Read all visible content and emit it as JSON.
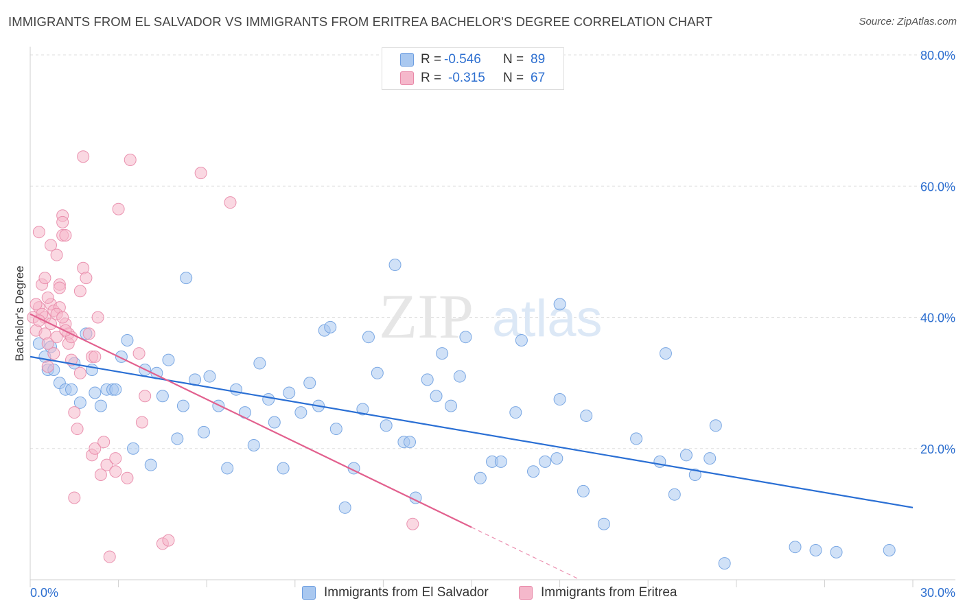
{
  "title": "IMMIGRANTS FROM EL SALVADOR VS IMMIGRANTS FROM ERITREA BACHELOR'S DEGREE CORRELATION CHART",
  "source": "Source: ZipAtlas.com",
  "watermark": {
    "part1": "ZIP",
    "part2": "atlas"
  },
  "colors": {
    "blue_fill": "#a9c8f0",
    "blue_edge": "#6d9ee0",
    "blue_line": "#2a6fd4",
    "pink_fill": "#f5b8cb",
    "pink_edge": "#e888a8",
    "pink_line": "#e2608e",
    "axis_label": "#2d6fd0",
    "grid": "#dedede"
  },
  "stats": [
    {
      "r_label": "R =",
      "r_value": "-0.546",
      "n_label": "N =",
      "n_value": "89",
      "color": "#a9c8f0"
    },
    {
      "r_label": "R =",
      "r_value": "-0.315",
      "n_label": "N =",
      "n_value": "67",
      "color": "#f5b8cb"
    }
  ],
  "legend": [
    {
      "label": "Immigrants from El Salvador",
      "color": "#a9c8f0"
    },
    {
      "label": "Immigrants from Eritrea",
      "color": "#f5b8cb"
    }
  ],
  "chart_data": {
    "type": "scatter",
    "title": "IMMIGRANTS FROM EL SALVADOR VS IMMIGRANTS FROM ERITREA BACHELOR'S DEGREE CORRELATION CHART",
    "xlabel": "",
    "ylabel": "Bachelor's Degree",
    "xlim": [
      0,
      30
    ],
    "ylim": [
      0,
      80
    ],
    "x_tick_labels": [
      "0.0%",
      "30.0%"
    ],
    "y_ticks": [
      20,
      40,
      60,
      80
    ],
    "y_tick_labels": [
      "20.0%",
      "40.0%",
      "60.0%",
      "80.0%"
    ],
    "grid": true,
    "legend_position": "bottom-center",
    "series": [
      {
        "name": "Immigrants from El Salvador",
        "color": "#a9c8f0",
        "trend": {
          "x": [
            0,
            30
          ],
          "y": [
            34.0,
            11.0
          ]
        },
        "points": [
          [
            0.3,
            36
          ],
          [
            0.5,
            34
          ],
          [
            0.6,
            32
          ],
          [
            0.7,
            35.5
          ],
          [
            0.8,
            32
          ],
          [
            1.0,
            30
          ],
          [
            1.2,
            29
          ],
          [
            1.4,
            29
          ],
          [
            1.5,
            33
          ],
          [
            1.7,
            27
          ],
          [
            1.9,
            37.5
          ],
          [
            2.1,
            32
          ],
          [
            2.2,
            28.5
          ],
          [
            2.4,
            26.5
          ],
          [
            2.6,
            29
          ],
          [
            2.8,
            29
          ],
          [
            2.9,
            29
          ],
          [
            3.1,
            34
          ],
          [
            3.3,
            36.5
          ],
          [
            3.5,
            20
          ],
          [
            3.9,
            32
          ],
          [
            4.1,
            17.5
          ],
          [
            4.3,
            31.5
          ],
          [
            4.5,
            28
          ],
          [
            4.7,
            33.5
          ],
          [
            5.0,
            21.5
          ],
          [
            5.2,
            26.5
          ],
          [
            5.3,
            46
          ],
          [
            5.6,
            30.5
          ],
          [
            5.9,
            22.5
          ],
          [
            6.1,
            31
          ],
          [
            6.4,
            26.5
          ],
          [
            6.7,
            17
          ],
          [
            7.0,
            29
          ],
          [
            7.3,
            25.5
          ],
          [
            7.6,
            20.5
          ],
          [
            7.8,
            33
          ],
          [
            8.1,
            27.5
          ],
          [
            8.3,
            24
          ],
          [
            8.6,
            17
          ],
          [
            8.8,
            28.5
          ],
          [
            9.2,
            25.5
          ],
          [
            9.5,
            30
          ],
          [
            9.8,
            26.5
          ],
          [
            10.0,
            38
          ],
          [
            10.2,
            38.5
          ],
          [
            10.4,
            23
          ],
          [
            10.7,
            11
          ],
          [
            11.0,
            17
          ],
          [
            11.3,
            26
          ],
          [
            11.5,
            37
          ],
          [
            11.8,
            31.5
          ],
          [
            12.1,
            23.5
          ],
          [
            12.4,
            48
          ],
          [
            12.7,
            21
          ],
          [
            12.9,
            21
          ],
          [
            13.1,
            12.5
          ],
          [
            13.5,
            30.5
          ],
          [
            13.8,
            28
          ],
          [
            14.0,
            34.5
          ],
          [
            14.3,
            26.5
          ],
          [
            14.6,
            31
          ],
          [
            14.8,
            37
          ],
          [
            15.3,
            15.5
          ],
          [
            15.7,
            18
          ],
          [
            16.0,
            18
          ],
          [
            16.5,
            25.5
          ],
          [
            16.7,
            36.5
          ],
          [
            17.1,
            16.5
          ],
          [
            17.5,
            18
          ],
          [
            17.9,
            18.5
          ],
          [
            18.0,
            27.5
          ],
          [
            18.0,
            42
          ],
          [
            18.8,
            13.5
          ],
          [
            18.9,
            25
          ],
          [
            19.5,
            8.5
          ],
          [
            20.6,
            21.5
          ],
          [
            21.4,
            18
          ],
          [
            21.6,
            34.5
          ],
          [
            21.9,
            13
          ],
          [
            22.3,
            19
          ],
          [
            22.6,
            16
          ],
          [
            23.1,
            18.5
          ],
          [
            23.3,
            23.5
          ],
          [
            23.6,
            2.5
          ],
          [
            26.7,
            4.5
          ],
          [
            27.4,
            4.2
          ],
          [
            29.2,
            4.5
          ],
          [
            26.0,
            5.0
          ]
        ]
      },
      {
        "name": "Immigrants from Eritrea",
        "color": "#f5b8cb",
        "trend": {
          "x": [
            0,
            15
          ],
          "y": [
            40.5,
            8.0
          ]
        },
        "points": [
          [
            0.1,
            40
          ],
          [
            0.2,
            38
          ],
          [
            0.3,
            41.5
          ],
          [
            0.3,
            53
          ],
          [
            0.4,
            45
          ],
          [
            0.5,
            46
          ],
          [
            0.5,
            40
          ],
          [
            0.6,
            32.5
          ],
          [
            0.7,
            42
          ],
          [
            0.7,
            39
          ],
          [
            0.8,
            34.5
          ],
          [
            0.7,
            51
          ],
          [
            0.9,
            37
          ],
          [
            0.9,
            49.5
          ],
          [
            1.0,
            45
          ],
          [
            1.0,
            44.5
          ],
          [
            1.1,
            55.5
          ],
          [
            1.1,
            54.5
          ],
          [
            1.1,
            52.5
          ],
          [
            1.2,
            52.5
          ],
          [
            1.2,
            39
          ],
          [
            1.3,
            37.5
          ],
          [
            1.3,
            36
          ],
          [
            1.4,
            37
          ],
          [
            1.4,
            33.5
          ],
          [
            1.5,
            25.5
          ],
          [
            1.5,
            12.5
          ],
          [
            1.6,
            23
          ],
          [
            1.7,
            44
          ],
          [
            1.7,
            31.5
          ],
          [
            1.8,
            47.5
          ],
          [
            1.9,
            46
          ],
          [
            2.0,
            37.5
          ],
          [
            2.1,
            34
          ],
          [
            2.1,
            19
          ],
          [
            2.2,
            34
          ],
          [
            2.2,
            20
          ],
          [
            2.3,
            40
          ],
          [
            2.4,
            16
          ],
          [
            2.5,
            21
          ],
          [
            2.6,
            17.5
          ],
          [
            2.7,
            3.5
          ],
          [
            2.9,
            18.5
          ],
          [
            2.9,
            16.5
          ],
          [
            3.0,
            56.5
          ],
          [
            3.3,
            15.5
          ],
          [
            3.4,
            64
          ],
          [
            3.7,
            34.5
          ],
          [
            3.8,
            24
          ],
          [
            3.9,
            28
          ],
          [
            4.5,
            5.5
          ],
          [
            4.7,
            6
          ],
          [
            5.8,
            62
          ],
          [
            6.8,
            57.5
          ],
          [
            13.0,
            8.5
          ],
          [
            1.8,
            64.5
          ],
          [
            0.2,
            42
          ],
          [
            0.4,
            40.5
          ],
          [
            0.6,
            43
          ],
          [
            0.8,
            41
          ],
          [
            1.0,
            41.5
          ],
          [
            0.3,
            39.5
          ],
          [
            0.5,
            37.5
          ],
          [
            0.9,
            40.5
          ],
          [
            1.2,
            38
          ],
          [
            0.6,
            36
          ],
          [
            1.1,
            40
          ]
        ]
      }
    ]
  }
}
